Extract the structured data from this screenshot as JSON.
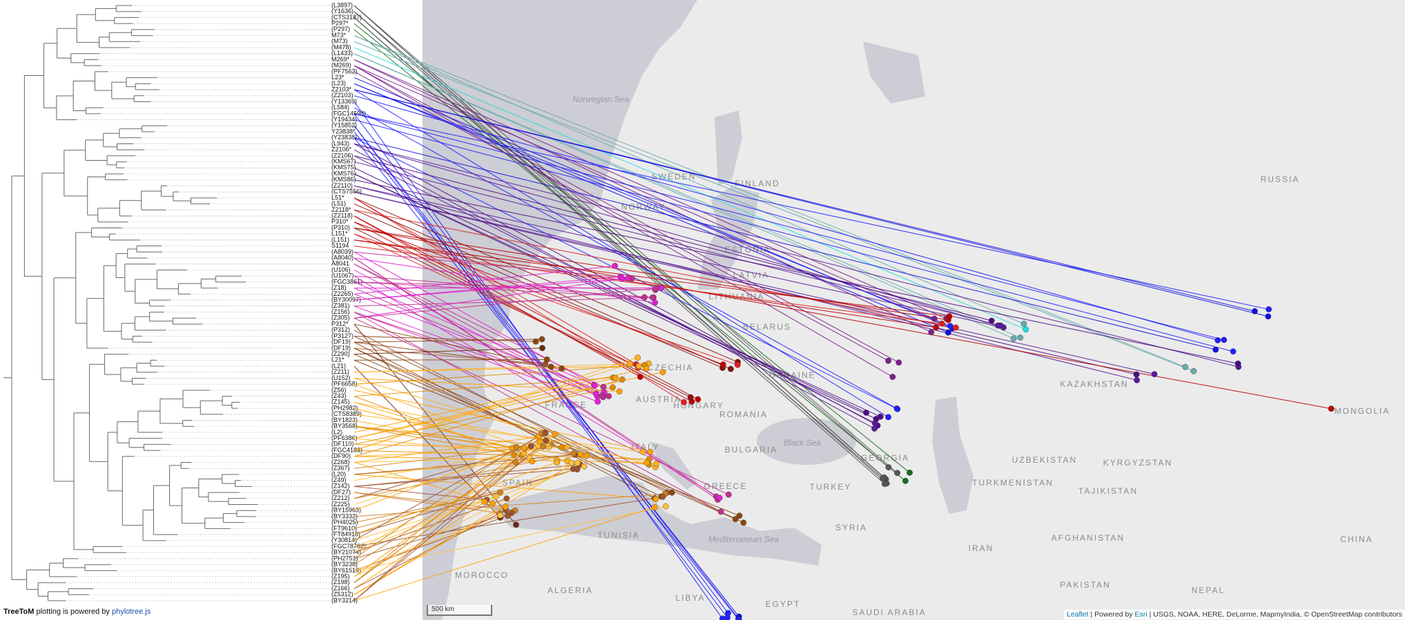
{
  "tree": {
    "labels": [
      "(L3897)",
      "(Y1636)",
      "(CTS3187)",
      "P297*",
      "(P297)",
      "M73*",
      "(M73)",
      "(M478)",
      "(L1433)",
      "M269*",
      "(M269)",
      "(PF7562)",
      "L23*",
      "(L23)",
      "Z2103*",
      "(Z2103)",
      "(Y13369)",
      "(L584)",
      "(FGC14590)",
      "(Y19434)",
      "(Y15852)",
      "Y23838*",
      "(Y23838)",
      "(L943)",
      "Z2106*",
      "(Z2106)",
      "(KMS67)",
      "(KMS75)",
      "(KMS76)",
      "(KMS86)",
      "(Z2110)",
      "(CTS7556)",
      "L51*",
      "(L51)",
      "Z2118*",
      "(Z2118)",
      "P310*",
      "(P310)",
      "L151*",
      "(L151)",
      "S1194",
      "(A8039)",
      "(A8040)",
      "A8041",
      "(U106)",
      "(U1067)",
      "(FGC3861)",
      "(Z18)",
      "(Z2265)",
      "(BY30097)",
      "(Z381)",
      "(Z156)",
      "(Z305)",
      "P312*",
      "(P312)",
      "(P3127)",
      "(DF19)",
      "(DF19)",
      "(Z290)",
      "L21*",
      "(L21)",
      "(Z211)",
      "(U152)",
      "(PF6658)",
      "(Z56)",
      "(Z43)",
      "(Z145)",
      "(PH2982)",
      "(CTS8389)",
      "(BY1823)",
      "(BY3568)",
      "(L2)",
      "(PF6386)",
      "(DF110)",
      "(FGC4183)",
      "(DF90)",
      "(Z268)",
      "(Z367)",
      "(L20)",
      "(Z49)",
      "(Z142)",
      "(DF27)",
      "(Z212)",
      "(Z225)",
      "(BY15963)",
      "(BY3332)",
      "(PH4025)",
      "(FT9610)",
      "(FT84918)",
      "(Y30814)",
      "(FGC78782)",
      "(BY21074)",
      "(PH2751)",
      "(BY3238)",
      "(BY61519)",
      "(Z195)",
      "(Z198)",
      "(Z166)",
      "(Z5312)",
      "(BY3214)"
    ]
  },
  "map": {
    "labels": [
      "Norwegian Sea",
      "SWEDEN",
      "FINLAND",
      "NORWAY",
      "RUSSIA",
      "ESTONIA",
      "LATVIA",
      "LITHUANIA",
      "BELARUS",
      "UKRAINE",
      "KAZAKHSTAN",
      "MONGOLIA",
      "ROMANIA",
      "HUNGARY",
      "AUSTRIA",
      "CZECHIA",
      "FRANCE",
      "ITALY",
      "SPAIN",
      "GREECE",
      "BULGARIA",
      "TURKEY",
      "GEORGIA",
      "UZBEKISTAN",
      "TURKMENISTAN",
      "KYRGYZSTAN",
      "TAJIKISTAN",
      "AFGHANISTAN",
      "IRAN",
      "CHINA",
      "PAKISTAN",
      "NEPAL",
      "SYRIA",
      "TUNISIA",
      "MOROCCO",
      "ALGERIA",
      "LIBYA",
      "EGYPT",
      "SAUDI ARABIA",
      "Mediterranean Sea",
      "Black Sea"
    ],
    "scale": "500 km",
    "attribution": {
      "leaflet": "Leaflet",
      "powered": "| Powered by",
      "esri": "Esri",
      "sources": "| USGS, NOAA, HERE, DeLorme, MapmyIndia, © OpenStreetMap contributors"
    }
  },
  "footer": {
    "brand": "TreeToM",
    "text": "plotting is powered by",
    "link": "phylotree.js"
  }
}
